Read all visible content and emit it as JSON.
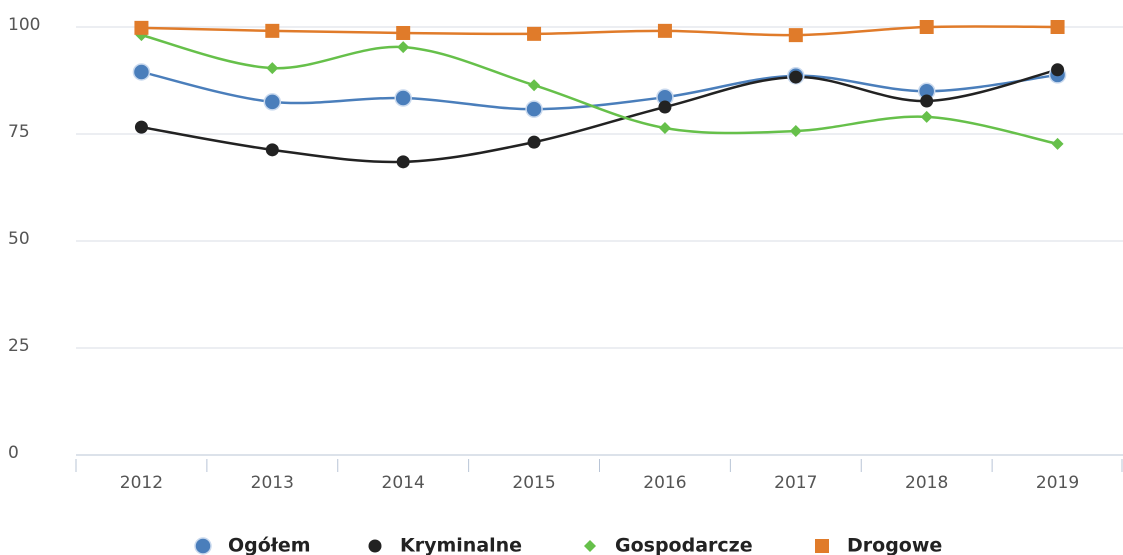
{
  "chart_data": {
    "type": "line",
    "categories": [
      "2012",
      "2013",
      "2014",
      "2015",
      "2016",
      "2017",
      "2018",
      "2019"
    ],
    "series": [
      {
        "name": "Ogółem",
        "color": "#4a7ebb",
        "marker": "circle",
        "values": [
          89.5,
          82.5,
          83.4,
          80.8,
          83.6,
          88.6,
          85,
          88.8
        ]
      },
      {
        "name": "Kryminalne",
        "color": "#222222",
        "marker": "dot",
        "values": [
          76.6,
          71.3,
          68.5,
          73.1,
          81.3,
          88.3,
          82.7,
          90.0
        ]
      },
      {
        "name": "Gospodarcze",
        "color": "#66c04a",
        "marker": "diamond",
        "values": [
          98.1,
          90.4,
          95.3,
          86.4,
          76.4,
          75.7,
          79,
          72.7
        ]
      },
      {
        "name": "Drogowe",
        "color": "#e07b2a",
        "marker": "square",
        "values": [
          99.8,
          99.1,
          98.6,
          98.4,
          99.1,
          98.1,
          100,
          100
        ]
      }
    ],
    "ylim": [
      0,
      100
    ],
    "yticks": [
      0,
      25,
      50,
      75,
      100
    ],
    "grid": true,
    "legend": "bottom"
  }
}
